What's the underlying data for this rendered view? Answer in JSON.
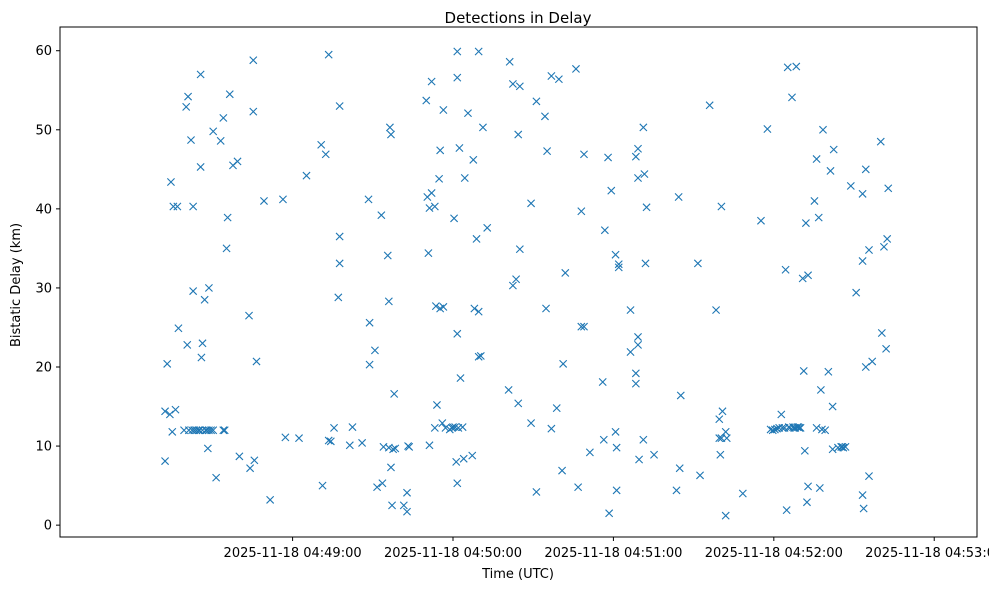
{
  "chart_data": {
    "type": "scatter",
    "title": "Detections in Delay",
    "xlabel": "Time (UTC)",
    "ylabel": "Bistatic Delay (km)",
    "x_unit": "seconds after 2025-11-18 04:48:00 UTC",
    "xlim": [
      -27,
      316
    ],
    "ylim": [
      -1.5,
      63
    ],
    "x_ticks": [
      {
        "value": 60,
        "label": "2025-11-18 04:49:00"
      },
      {
        "value": 120,
        "label": "2025-11-18 04:50:00"
      },
      {
        "value": 180,
        "label": "2025-11-18 04:51:00"
      },
      {
        "value": 240,
        "label": "2025-11-18 04:52:00"
      },
      {
        "value": 300,
        "label": "2025-11-18 04:53:00"
      }
    ],
    "y_ticks": [
      {
        "value": 0,
        "label": "0"
      },
      {
        "value": 10,
        "label": "10"
      },
      {
        "value": 20,
        "label": "20"
      },
      {
        "value": 30,
        "label": "30"
      },
      {
        "value": 40,
        "label": "40"
      },
      {
        "value": 50,
        "label": "50"
      },
      {
        "value": 60,
        "label": "60"
      }
    ],
    "marker": "x",
    "grid": false,
    "series": [
      {
        "name": "Detections",
        "color": "#1f77b4",
        "points": [
          [
            12.3,
            14.4
          ],
          [
            12.3,
            8.1
          ],
          [
            13.1,
            20.4
          ],
          [
            14.1,
            14.0
          ],
          [
            14.5,
            43.4
          ],
          [
            15.0,
            11.8
          ],
          [
            15.4,
            40.3
          ],
          [
            16.2,
            14.6
          ],
          [
            16.9,
            40.3
          ],
          [
            17.3,
            24.9
          ],
          [
            19.4,
            12.0
          ],
          [
            20.2,
            52.9
          ],
          [
            20.6,
            22.8
          ],
          [
            20.9,
            54.2
          ],
          [
            21.2,
            12.0
          ],
          [
            22.0,
            48.7
          ],
          [
            22.4,
            12.0
          ],
          [
            22.8,
            40.3
          ],
          [
            22.8,
            29.6
          ],
          [
            23.2,
            12.0
          ],
          [
            24.0,
            12.0
          ],
          [
            24.8,
            12.0
          ],
          [
            25.2,
            12.0
          ],
          [
            25.6,
            57.0
          ],
          [
            25.6,
            45.3
          ],
          [
            25.9,
            21.2
          ],
          [
            26.3,
            23.0
          ],
          [
            26.3,
            12.0
          ],
          [
            27.1,
            28.5
          ],
          [
            27.5,
            12.0
          ],
          [
            27.9,
            12.0
          ],
          [
            28.3,
            9.7
          ],
          [
            28.7,
            30.0
          ],
          [
            28.7,
            12.0
          ],
          [
            29.5,
            12.0
          ],
          [
            30.3,
            49.8
          ],
          [
            30.3,
            12.0
          ],
          [
            31.4,
            6.0
          ],
          [
            33.1,
            48.6
          ],
          [
            34.1,
            12.0
          ],
          [
            34.1,
            51.5
          ],
          [
            34.6,
            12.0
          ],
          [
            35.3,
            35.0
          ],
          [
            35.7,
            38.9
          ],
          [
            36.5,
            54.5
          ],
          [
            37.7,
            45.5
          ],
          [
            39.4,
            46.0
          ],
          [
            40.1,
            8.7
          ],
          [
            43.7,
            26.5
          ],
          [
            44.1,
            7.2
          ],
          [
            45.3,
            58.8
          ],
          [
            45.3,
            52.3
          ],
          [
            45.7,
            8.2
          ],
          [
            46.5,
            20.7
          ],
          [
            49.3,
            41.0
          ],
          [
            51.6,
            3.2
          ],
          [
            56.4,
            41.2
          ],
          [
            57.3,
            11.1
          ],
          [
            62.4,
            11.0
          ],
          [
            65.2,
            44.2
          ],
          [
            70.7,
            48.1
          ],
          [
            71.2,
            5.0
          ],
          [
            72.4,
            46.9
          ],
          [
            73.5,
            59.5
          ],
          [
            73.5,
            10.7
          ],
          [
            74.3,
            10.6
          ],
          [
            75.5,
            12.3
          ],
          [
            77.1,
            28.8
          ],
          [
            77.6,
            53.0
          ],
          [
            77.6,
            36.5
          ],
          [
            77.6,
            33.1
          ],
          [
            81.4,
            10.1
          ],
          [
            82.4,
            12.4
          ],
          [
            86.0,
            10.4
          ],
          [
            88.4,
            41.2
          ],
          [
            88.8,
            25.6
          ],
          [
            88.8,
            20.3
          ],
          [
            90.8,
            22.1
          ],
          [
            91.6,
            4.8
          ],
          [
            93.2,
            39.2
          ],
          [
            93.6,
            5.3
          ],
          [
            94.0,
            9.9
          ],
          [
            95.6,
            34.1
          ],
          [
            96.0,
            28.3
          ],
          [
            96.0,
            9.8
          ],
          [
            96.4,
            50.3
          ],
          [
            96.8,
            49.4
          ],
          [
            96.8,
            7.3
          ],
          [
            97.2,
            2.5
          ],
          [
            97.6,
            9.6
          ],
          [
            98.0,
            16.6
          ],
          [
            98.4,
            9.7
          ],
          [
            101.6,
            2.5
          ],
          [
            102.8,
            4.1
          ],
          [
            102.8,
            1.7
          ],
          [
            103.2,
            10.0
          ],
          [
            103.6,
            9.9
          ],
          [
            110.0,
            53.7
          ],
          [
            110.4,
            41.5
          ],
          [
            110.8,
            34.4
          ],
          [
            111.2,
            40.1
          ],
          [
            111.2,
            10.1
          ],
          [
            112.0,
            56.1
          ],
          [
            112.0,
            42.0
          ],
          [
            113.2,
            40.3
          ],
          [
            113.2,
            12.3
          ],
          [
            113.6,
            27.7
          ],
          [
            114.0,
            15.2
          ],
          [
            114.8,
            43.8
          ],
          [
            115.2,
            47.4
          ],
          [
            115.2,
            27.4
          ],
          [
            116.0,
            12.9
          ],
          [
            116.4,
            52.5
          ],
          [
            116.4,
            27.6
          ],
          [
            117.2,
            12.3
          ],
          [
            118.8,
            12.1
          ],
          [
            119.6,
            12.3
          ],
          [
            120.0,
            12.4
          ],
          [
            120.4,
            38.8
          ],
          [
            120.8,
            12.4
          ],
          [
            121.2,
            8.0
          ],
          [
            121.6,
            59.9
          ],
          [
            121.6,
            56.6
          ],
          [
            121.6,
            24.2
          ],
          [
            121.6,
            5.3
          ],
          [
            122.0,
            12.3
          ],
          [
            122.4,
            47.7
          ],
          [
            122.8,
            18.6
          ],
          [
            123.6,
            12.4
          ],
          [
            124.0,
            8.4
          ],
          [
            124.4,
            43.9
          ],
          [
            125.6,
            52.1
          ],
          [
            127.2,
            8.8
          ],
          [
            127.6,
            46.2
          ],
          [
            128.0,
            27.4
          ],
          [
            128.8,
            36.2
          ],
          [
            129.6,
            59.9
          ],
          [
            129.6,
            27.0
          ],
          [
            129.6,
            21.3
          ],
          [
            130.4,
            21.4
          ],
          [
            131.2,
            50.3
          ],
          [
            132.8,
            37.6
          ],
          [
            140.8,
            17.1
          ],
          [
            141.2,
            58.6
          ],
          [
            142.4,
            55.8
          ],
          [
            142.4,
            30.3
          ],
          [
            143.6,
            31.1
          ],
          [
            144.4,
            49.4
          ],
          [
            145.0,
            55.5
          ],
          [
            145.0,
            34.9
          ],
          [
            144.4,
            15.4
          ],
          [
            149.2,
            40.7
          ],
          [
            149.2,
            12.9
          ],
          [
            151.2,
            4.2
          ],
          [
            151.2,
            53.6
          ],
          [
            154.4,
            51.7
          ],
          [
            155.2,
            47.3
          ],
          [
            154.8,
            27.4
          ],
          [
            156.8,
            56.8
          ],
          [
            156.8,
            12.2
          ],
          [
            158.8,
            14.8
          ],
          [
            159.6,
            56.4
          ],
          [
            160.8,
            6.9
          ],
          [
            161.2,
            20.4
          ],
          [
            162.0,
            31.9
          ],
          [
            166.0,
            57.7
          ],
          [
            166.8,
            4.8
          ],
          [
            168.0,
            39.7
          ],
          [
            168.0,
            25.1
          ],
          [
            169.0,
            46.9
          ],
          [
            169.0,
            25.1
          ],
          [
            171.2,
            9.2
          ],
          [
            176.0,
            18.1
          ],
          [
            176.4,
            10.8
          ],
          [
            176.8,
            37.3
          ],
          [
            178.0,
            46.5
          ],
          [
            178.4,
            1.5
          ],
          [
            179.2,
            42.3
          ],
          [
            180.8,
            34.2
          ],
          [
            180.8,
            11.8
          ],
          [
            181.2,
            4.4
          ],
          [
            182.0,
            33.0
          ],
          [
            182.0,
            32.6
          ],
          [
            181.2,
            9.8
          ],
          [
            186.4,
            27.2
          ],
          [
            186.4,
            21.9
          ],
          [
            188.4,
            46.6
          ],
          [
            188.4,
            19.2
          ],
          [
            188.4,
            17.9
          ],
          [
            189.2,
            47.6
          ],
          [
            189.2,
            43.9
          ],
          [
            189.2,
            23.8
          ],
          [
            189.2,
            22.8
          ],
          [
            189.6,
            8.3
          ],
          [
            191.2,
            50.3
          ],
          [
            191.2,
            10.8
          ],
          [
            191.6,
            44.4
          ],
          [
            192.0,
            33.1
          ],
          [
            192.4,
            40.2
          ],
          [
            195.2,
            8.9
          ],
          [
            203.6,
            4.4
          ],
          [
            204.4,
            41.5
          ],
          [
            205.2,
            16.4
          ],
          [
            204.8,
            7.2
          ],
          [
            211.6,
            33.1
          ],
          [
            212.4,
            6.3
          ],
          [
            216.0,
            53.1
          ],
          [
            218.4,
            27.2
          ],
          [
            219.6,
            13.4
          ],
          [
            219.6,
            11.0
          ],
          [
            220.4,
            40.3
          ],
          [
            220.0,
            8.9
          ],
          [
            220.4,
            11.0
          ],
          [
            220.8,
            14.4
          ],
          [
            222.0,
            11.8
          ],
          [
            222.0,
            1.2
          ],
          [
            222.4,
            11.0
          ],
          [
            228.4,
            4.0
          ],
          [
            235.2,
            38.5
          ],
          [
            237.6,
            50.1
          ],
          [
            238.8,
            12.1
          ],
          [
            239.6,
            12.0
          ],
          [
            240.4,
            12.1
          ],
          [
            241.2,
            12.2
          ],
          [
            242.0,
            12.3
          ],
          [
            242.8,
            14.0
          ],
          [
            243.2,
            12.3
          ],
          [
            244.0,
            12.3
          ],
          [
            244.4,
            32.3
          ],
          [
            244.8,
            1.9
          ],
          [
            245.2,
            57.9
          ],
          [
            245.6,
            12.4
          ],
          [
            246.0,
            12.3
          ],
          [
            246.8,
            54.1
          ],
          [
            247.2,
            12.4
          ],
          [
            247.6,
            12.3
          ],
          [
            248.0,
            12.3
          ],
          [
            248.4,
            58.0
          ],
          [
            248.8,
            12.4
          ],
          [
            249.2,
            12.4
          ],
          [
            249.6,
            12.3
          ],
          [
            250.0,
            12.3
          ],
          [
            250.8,
            31.2
          ],
          [
            251.2,
            19.5
          ],
          [
            251.6,
            9.4
          ],
          [
            252.0,
            38.2
          ],
          [
            252.4,
            2.9
          ],
          [
            252.8,
            4.9
          ],
          [
            252.8,
            31.6
          ],
          [
            255.2,
            41.0
          ],
          [
            256.0,
            46.3
          ],
          [
            256.0,
            12.3
          ],
          [
            256.8,
            38.9
          ],
          [
            257.2,
            4.7
          ],
          [
            257.6,
            17.1
          ],
          [
            258.0,
            12.1
          ],
          [
            258.4,
            50.0
          ],
          [
            259.2,
            12.0
          ],
          [
            260.4,
            19.4
          ],
          [
            261.2,
            44.8
          ],
          [
            262.4,
            47.5
          ],
          [
            262.0,
            15.0
          ],
          [
            262.0,
            9.6
          ],
          [
            264.0,
            9.8
          ],
          [
            265.2,
            9.9
          ],
          [
            265.6,
            9.9
          ],
          [
            266.0,
            9.8
          ],
          [
            266.8,
            9.9
          ],
          [
            268.8,
            42.9
          ],
          [
            270.8,
            29.4
          ],
          [
            273.2,
            33.4
          ],
          [
            273.2,
            41.9
          ],
          [
            273.2,
            3.8
          ],
          [
            273.6,
            2.1
          ],
          [
            274.4,
            45.0
          ],
          [
            274.4,
            20.0
          ],
          [
            275.6,
            34.8
          ],
          [
            275.6,
            6.2
          ],
          [
            276.8,
            20.7
          ],
          [
            280.0,
            48.5
          ],
          [
            280.4,
            24.3
          ],
          [
            281.2,
            35.2
          ],
          [
            282.0,
            22.3
          ],
          [
            282.4,
            36.2
          ],
          [
            282.8,
            42.6
          ]
        ]
      }
    ]
  }
}
